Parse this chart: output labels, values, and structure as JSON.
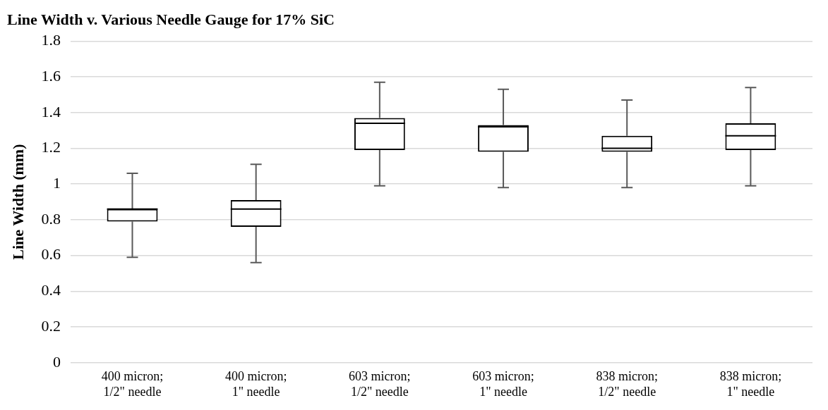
{
  "chart_data": {
    "type": "box",
    "title": "Line Width v. Various Needle Gauge for 17% SiC",
    "ylabel": "Line Width (mm)",
    "categories": [
      "400 micron; 1/2\" needle",
      "400 micron; 1\" needle",
      "603 micron; 1/2\" needle",
      "603 micron; 1\" needle",
      "838 micron; 1/2\" needle",
      "838 micron; 1\" needle"
    ],
    "boxes": [
      {
        "low": 0.59,
        "q1": 0.79,
        "median": 0.86,
        "q3": 0.86,
        "high": 1.06
      },
      {
        "low": 0.56,
        "q1": 0.76,
        "median": 0.86,
        "q3": 0.91,
        "high": 1.11
      },
      {
        "low": 0.99,
        "q1": 1.19,
        "median": 1.34,
        "q3": 1.37,
        "high": 1.57
      },
      {
        "low": 0.98,
        "q1": 1.18,
        "median": 1.32,
        "q3": 1.33,
        "high": 1.53
      },
      {
        "low": 0.98,
        "q1": 1.18,
        "median": 1.2,
        "q3": 1.27,
        "high": 1.47
      },
      {
        "low": 0.99,
        "q1": 1.19,
        "median": 1.27,
        "q3": 1.34,
        "high": 1.54
      }
    ],
    "color": "#000000",
    "ylim": [
      0,
      1.8
    ],
    "yticks": [
      0,
      0.2,
      0.4,
      0.6,
      0.8,
      1,
      1.2,
      1.4,
      1.6,
      1.8
    ],
    "grid": "y",
    "legend": false
  }
}
